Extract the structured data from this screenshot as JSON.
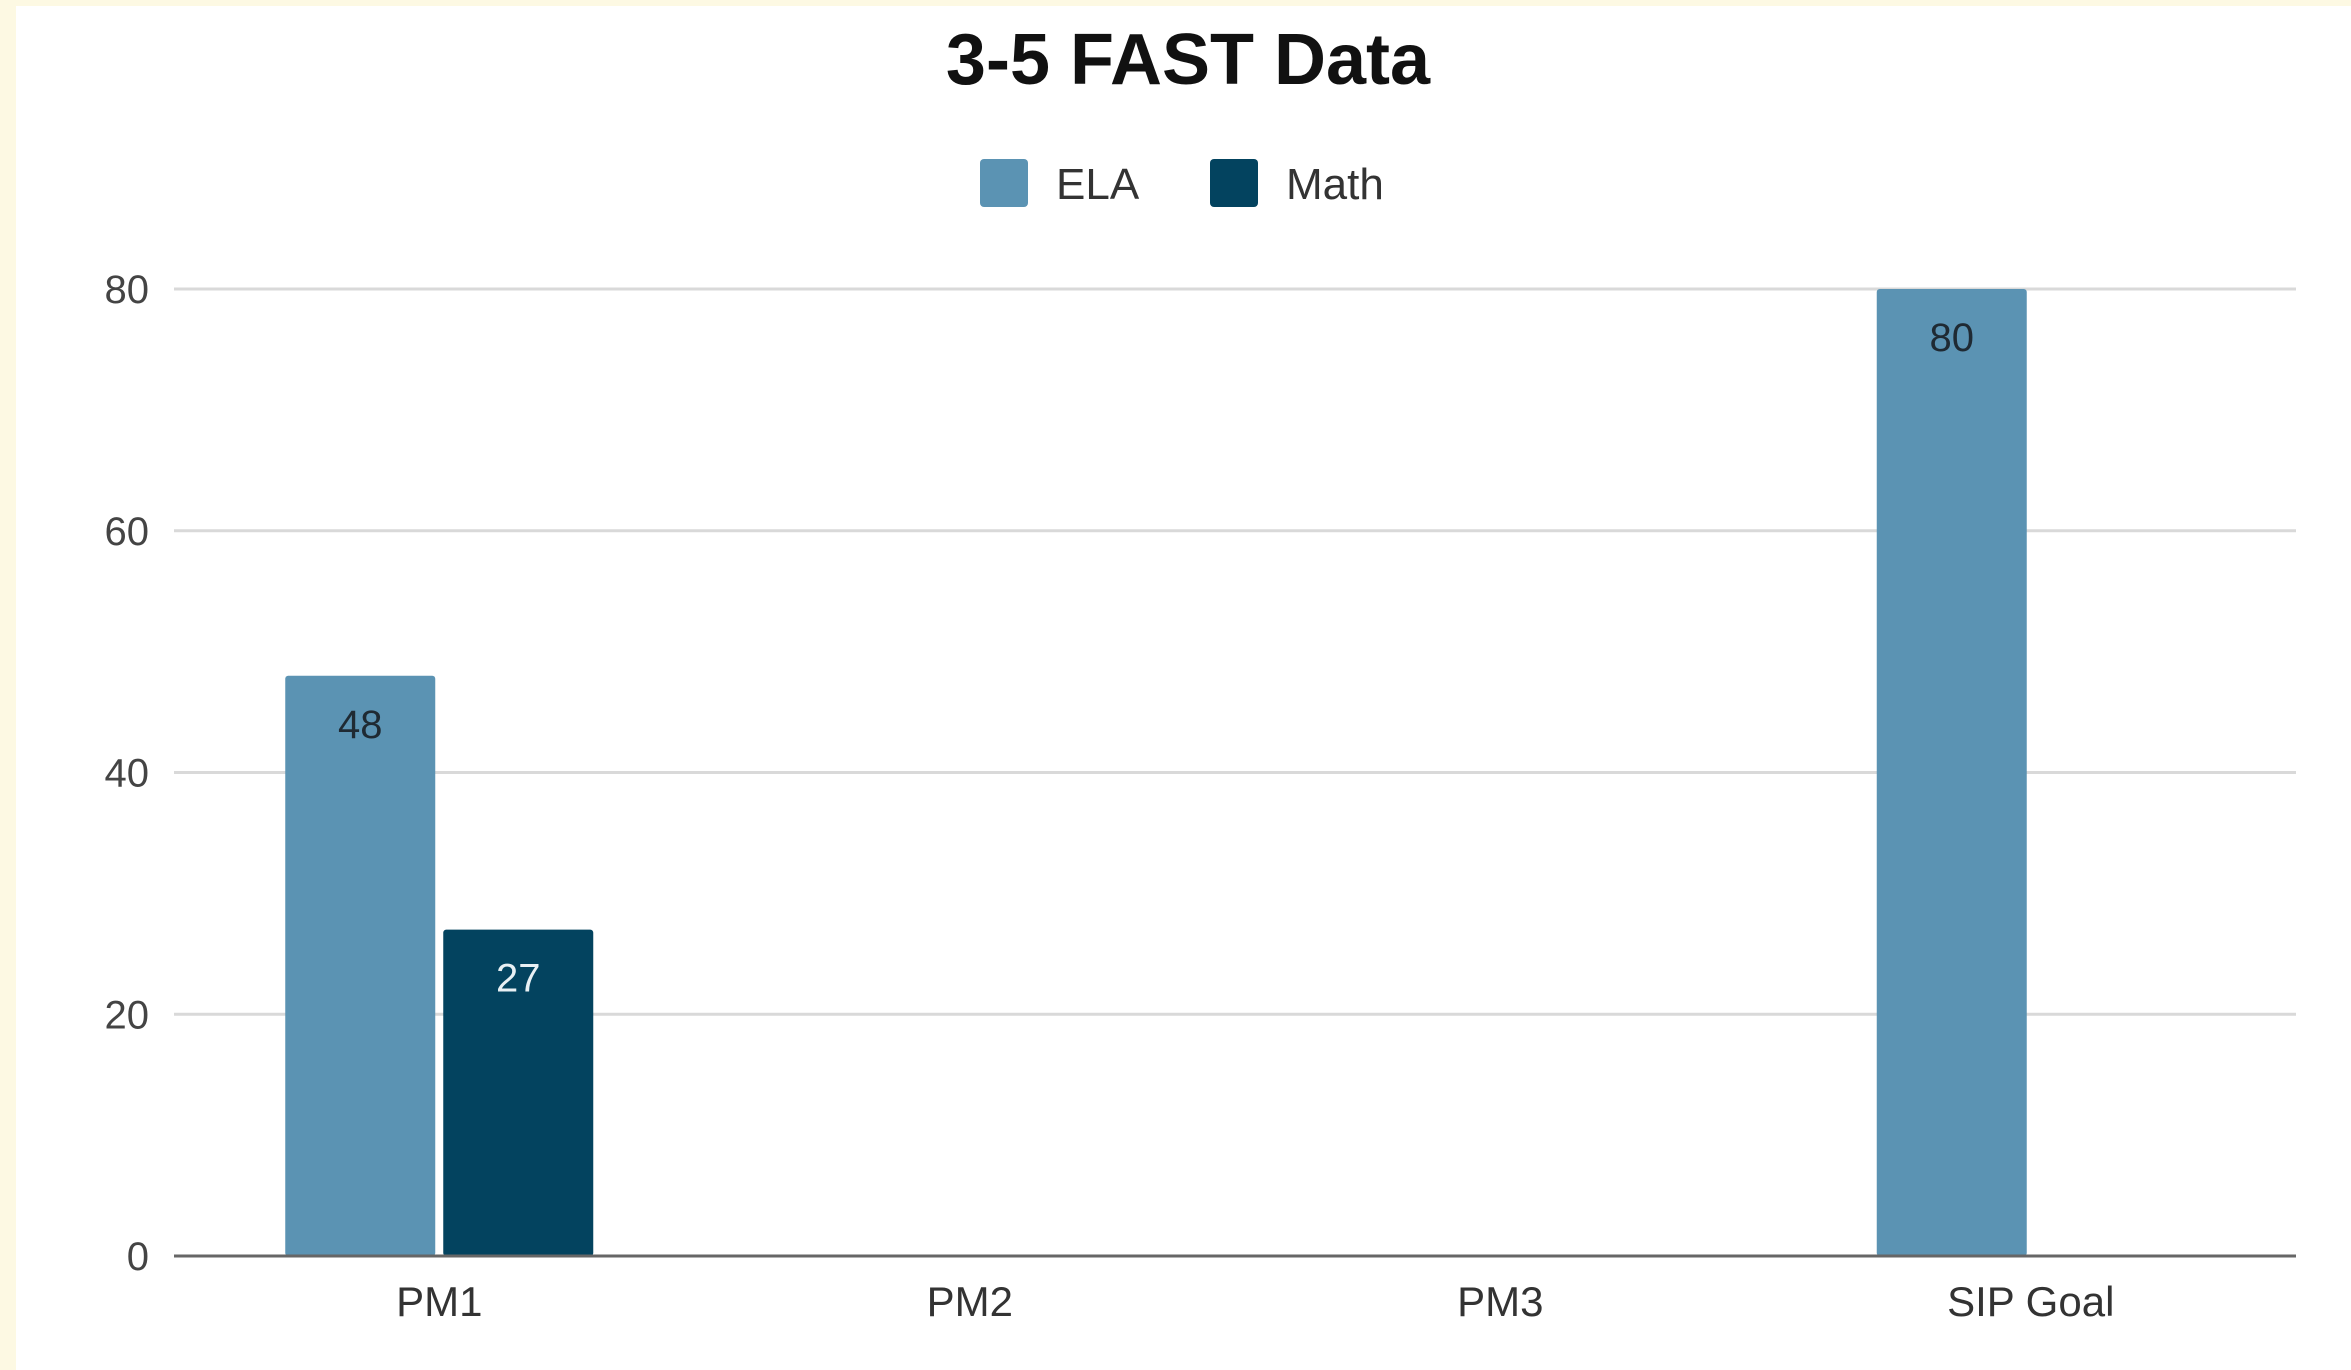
{
  "chart_data": {
    "type": "bar",
    "title": "3-5 FAST Data",
    "xlabel": "",
    "ylabel": "",
    "categories": [
      "PM1",
      "PM2",
      "PM3",
      "SIP Goal"
    ],
    "series": [
      {
        "name": "ELA",
        "color": "#5b93b3",
        "values": [
          48,
          null,
          null,
          80
        ],
        "label_color": "#1f2a33"
      },
      {
        "name": "Math",
        "color": "#03435f",
        "values": [
          27,
          null,
          null,
          null
        ],
        "label_color": "#e8f0f4"
      }
    ],
    "ylim": [
      0,
      80
    ],
    "yticks": [
      0,
      20,
      40,
      60,
      80
    ],
    "grid": true,
    "legend_position": "top-center",
    "gridline_color": "#d9d9d9",
    "axis_color": "#666666"
  }
}
